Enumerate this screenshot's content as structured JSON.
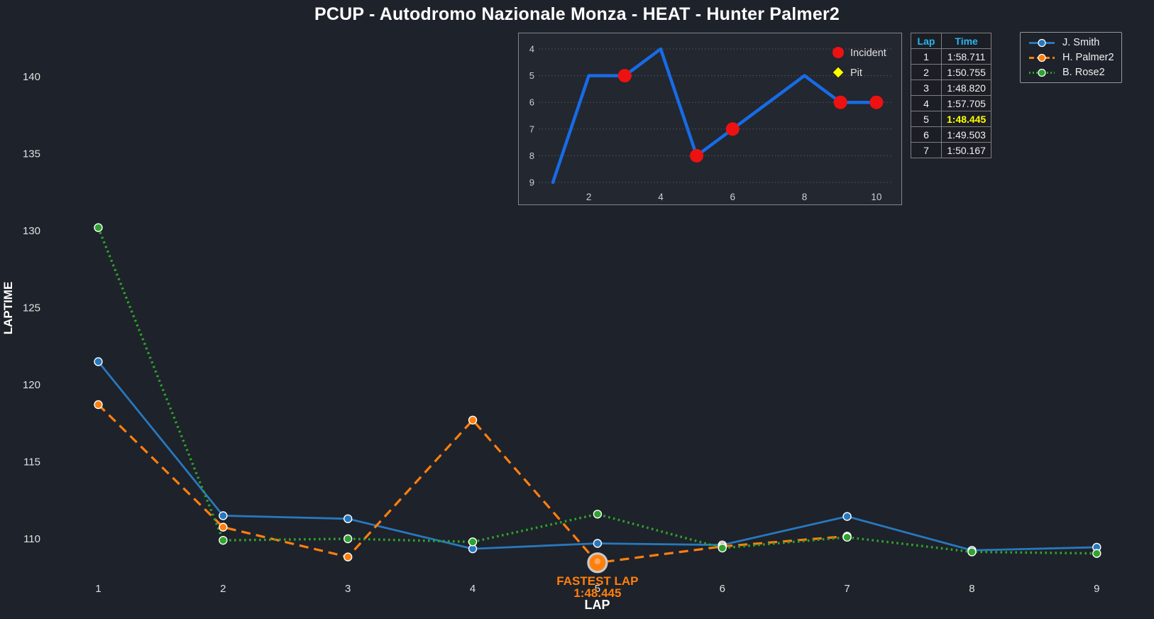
{
  "title": "PCUP - Autodromo Nazionale Monza - HEAT - Hunter Palmer2",
  "colors": {
    "background": "#1e222a",
    "blue": "#2878bd",
    "orange": "#ff7f0e",
    "green": "#2ea32e",
    "inset_line": "#176be6",
    "incident_red": "#ee1111",
    "pit_yellow": "#ffff00",
    "header_cyan": "#29b6f0",
    "highlight_yellow": "#ffff00",
    "tick_text": "#e0e0e0"
  },
  "chart_data": [
    {
      "name": "laptime-chart",
      "type": "line",
      "title": "",
      "xlabel": "LAP",
      "ylabel": "LAPTIME",
      "x": [
        1,
        2,
        3,
        4,
        5,
        6,
        7,
        8,
        9
      ],
      "xticks": [
        1,
        2,
        3,
        4,
        5,
        6,
        7,
        8,
        9
      ],
      "yticks": [
        110,
        115,
        120,
        125,
        130,
        135,
        140
      ],
      "ylim": [
        107.2,
        142.2
      ],
      "grid": false,
      "legend_position": "top-right",
      "series": [
        {
          "name": "J. Smith",
          "color": "#2878bd",
          "line_style": "solid",
          "values": [
            121.5,
            111.5,
            111.3,
            109.35,
            109.7,
            109.6,
            111.45,
            109.25,
            109.45
          ]
        },
        {
          "name": "H. Palmer2",
          "color": "#ff7f0e",
          "line_style": "dashed",
          "values": [
            118.711,
            110.755,
            108.82,
            117.705,
            108.445,
            109.503,
            110.167
          ]
        },
        {
          "name": "B. Rose2",
          "color": "#2ea32e",
          "line_style": "dotted",
          "values": [
            130.2,
            109.9,
            110.0,
            109.8,
            111.6,
            109.4,
            110.1,
            109.15,
            109.05
          ]
        }
      ],
      "annotation": {
        "lines": [
          "FASTEST LAP",
          "1:48.445"
        ],
        "series": "H. Palmer2",
        "lap": 5,
        "value": 108.445
      }
    },
    {
      "name": "position-inset",
      "type": "line",
      "x": [
        1,
        2,
        3,
        4,
        5,
        6,
        7,
        8,
        9,
        10
      ],
      "values": [
        9,
        5,
        5,
        4,
        8,
        7,
        6,
        5,
        6,
        6
      ],
      "y_inverted": true,
      "yticks": [
        4,
        5,
        6,
        7,
        8,
        9
      ],
      "xticks": [
        2,
        4,
        6,
        8,
        10
      ],
      "grid": true,
      "incident_laps": [
        3,
        5,
        6,
        9,
        10
      ],
      "pit_laps": [],
      "legend": [
        {
          "label": "Incident",
          "marker": "circle",
          "color": "#ee1111"
        },
        {
          "label": "Pit",
          "marker": "diamond",
          "color": "#ffff00"
        }
      ]
    }
  ],
  "lap_table": {
    "headers": [
      "Lap",
      "Time"
    ],
    "rows": [
      [
        "1",
        "1:58.711"
      ],
      [
        "2",
        "1:50.755"
      ],
      [
        "3",
        "1:48.820"
      ],
      [
        "4",
        "1:57.705"
      ],
      [
        "5",
        "1:48.445"
      ],
      [
        "6",
        "1:49.503"
      ],
      [
        "7",
        "1:50.167"
      ]
    ],
    "highlight_lap": "5"
  },
  "legend": {
    "items": [
      {
        "label": "J. Smith",
        "color": "#2878bd",
        "line_style": "solid"
      },
      {
        "label": "H. Palmer2",
        "color": "#ff7f0e",
        "line_style": "dashed"
      },
      {
        "label": "B. Rose2",
        "color": "#2ea32e",
        "line_style": "dotted"
      }
    ]
  }
}
